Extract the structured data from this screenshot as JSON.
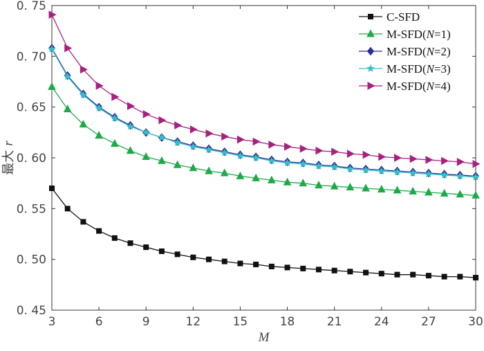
{
  "chart_data": {
    "type": "line",
    "xlabel": "M",
    "ylabel": "最大 r",
    "ylabel_parts": {
      "text": "最大",
      "symbol": "r"
    },
    "xlim": [
      3,
      30
    ],
    "ylim": [
      0.45,
      0.75
    ],
    "xticks": [
      3,
      6,
      9,
      12,
      15,
      18,
      21,
      24,
      27,
      30
    ],
    "yticks": [
      0.45,
      0.5,
      0.55,
      0.6,
      0.65,
      0.7,
      0.75
    ],
    "ytick_labels": [
      "0. 45",
      "0. 50",
      "0. 55",
      "0. 60",
      "0. 65",
      "0. 70",
      "0. 75"
    ],
    "grid": false,
    "legend_position": "top-right",
    "x": [
      3,
      4,
      5,
      6,
      7,
      8,
      9,
      10,
      11,
      12,
      13,
      14,
      15,
      16,
      17,
      18,
      19,
      20,
      21,
      22,
      23,
      24,
      25,
      26,
      27,
      28,
      29,
      30
    ],
    "series": [
      {
        "name": "C-SFD",
        "legend": {
          "prefix": "C-SFD",
          "var": "",
          "suffix": ""
        },
        "color": "#111111",
        "marker": "square",
        "values": [
          0.57,
          0.55,
          0.537,
          0.528,
          0.521,
          0.516,
          0.512,
          0.508,
          0.505,
          0.502,
          0.5,
          0.498,
          0.496,
          0.495,
          0.493,
          0.492,
          0.491,
          0.49,
          0.489,
          0.488,
          0.487,
          0.486,
          0.485,
          0.485,
          0.484,
          0.483,
          0.483,
          0.482
        ]
      },
      {
        "name": "M-SFD(N=1)",
        "legend": {
          "prefix": "M-SFD(",
          "var": "N",
          "suffix": "=1)"
        },
        "color": "#1faa4a",
        "marker": "triangle-up",
        "values": [
          0.67,
          0.648,
          0.633,
          0.622,
          0.614,
          0.607,
          0.601,
          0.597,
          0.593,
          0.59,
          0.587,
          0.585,
          0.582,
          0.58,
          0.578,
          0.576,
          0.575,
          0.573,
          0.572,
          0.571,
          0.57,
          0.569,
          0.568,
          0.567,
          0.566,
          0.565,
          0.564,
          0.563
        ]
      },
      {
        "name": "M-SFD(N=2)",
        "legend": {
          "prefix": "M-SFD(",
          "var": "N",
          "suffix": "=2)"
        },
        "color": "#2d2d9a",
        "marker": "diamond",
        "values": [
          0.708,
          0.681,
          0.663,
          0.65,
          0.64,
          0.632,
          0.625,
          0.62,
          0.616,
          0.612,
          0.609,
          0.606,
          0.603,
          0.601,
          0.598,
          0.596,
          0.595,
          0.593,
          0.592,
          0.59,
          0.589,
          0.588,
          0.587,
          0.586,
          0.585,
          0.584,
          0.583,
          0.582
        ]
      },
      {
        "name": "M-SFD(N=3)",
        "legend": {
          "prefix": "M-SFD(",
          "var": "N",
          "suffix": "=3)"
        },
        "color": "#35c0c8",
        "marker": "star",
        "values": [
          0.707,
          0.68,
          0.662,
          0.649,
          0.639,
          0.631,
          0.625,
          0.62,
          0.615,
          0.611,
          0.608,
          0.605,
          0.602,
          0.6,
          0.597,
          0.595,
          0.594,
          0.592,
          0.591,
          0.589,
          0.588,
          0.587,
          0.586,
          0.585,
          0.584,
          0.583,
          0.582,
          0.581
        ]
      },
      {
        "name": "M-SFD(N=4)",
        "legend": {
          "prefix": "M-SFD(",
          "var": "N",
          "suffix": "=4)"
        },
        "color": "#a8207f",
        "marker": "triangle-right",
        "values": [
          0.741,
          0.708,
          0.687,
          0.671,
          0.66,
          0.651,
          0.643,
          0.637,
          0.632,
          0.628,
          0.624,
          0.621,
          0.618,
          0.616,
          0.613,
          0.611,
          0.609,
          0.607,
          0.606,
          0.604,
          0.603,
          0.601,
          0.6,
          0.599,
          0.598,
          0.597,
          0.596,
          0.594
        ]
      }
    ]
  }
}
